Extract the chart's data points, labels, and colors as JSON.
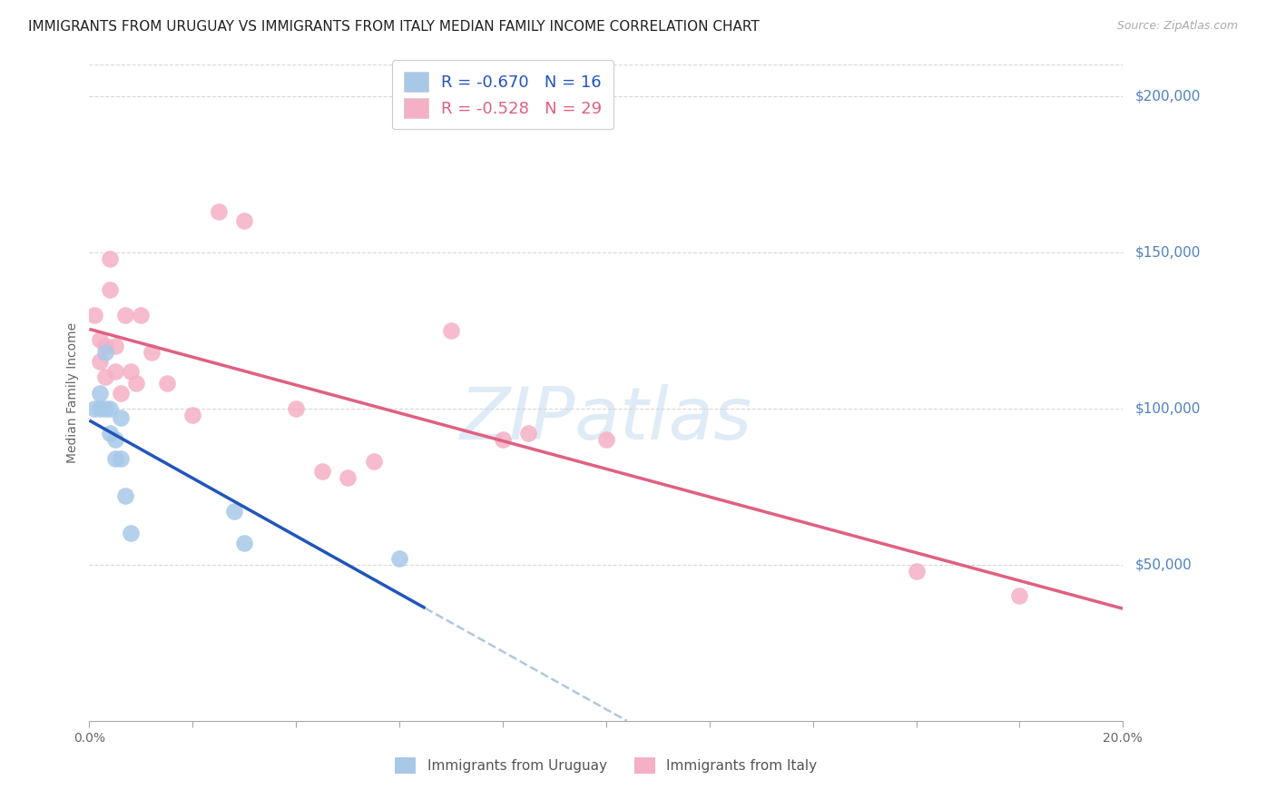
{
  "title": "IMMIGRANTS FROM URUGUAY VS IMMIGRANTS FROM ITALY MEDIAN FAMILY INCOME CORRELATION CHART",
  "source": "Source: ZipAtlas.com",
  "ylabel": "Median Family Income",
  "ytick_labels": [
    "$50,000",
    "$100,000",
    "$150,000",
    "$200,000"
  ],
  "ytick_values": [
    50000,
    100000,
    150000,
    200000
  ],
  "ytick_color": "#4f81bd",
  "watermark": "ZIPatlas",
  "legend_uruguay": "R = -0.670   N = 16",
  "legend_italy": "R = -0.528   N = 29",
  "legend_label_uruguay": "Immigrants from Uruguay",
  "legend_label_italy": "Immigrants from Italy",
  "uruguay_color": "#a8c8e8",
  "italy_color": "#f5b0c5",
  "uruguay_line_color": "#2255bb",
  "italy_line_color": "#e06080",
  "dashed_line_color": "#b0c8e0",
  "background_color": "#ffffff",
  "grid_color": "#d8d8d8",
  "uruguay_x": [
    0.001,
    0.002,
    0.002,
    0.003,
    0.003,
    0.004,
    0.004,
    0.005,
    0.005,
    0.006,
    0.006,
    0.007,
    0.008,
    0.028,
    0.03,
    0.06
  ],
  "uruguay_y": [
    100000,
    105000,
    100000,
    118000,
    100000,
    92000,
    100000,
    90000,
    84000,
    84000,
    97000,
    72000,
    60000,
    67000,
    57000,
    52000
  ],
  "italy_x": [
    0.001,
    0.002,
    0.002,
    0.003,
    0.003,
    0.004,
    0.004,
    0.005,
    0.005,
    0.006,
    0.007,
    0.008,
    0.009,
    0.01,
    0.012,
    0.015,
    0.02,
    0.025,
    0.03,
    0.04,
    0.045,
    0.05,
    0.055,
    0.07,
    0.08,
    0.085,
    0.1,
    0.16,
    0.18
  ],
  "italy_y": [
    130000,
    122000,
    115000,
    120000,
    110000,
    148000,
    138000,
    120000,
    112000,
    105000,
    130000,
    112000,
    108000,
    130000,
    118000,
    108000,
    98000,
    163000,
    160000,
    100000,
    80000,
    78000,
    83000,
    125000,
    90000,
    92000,
    90000,
    48000,
    40000
  ],
  "xmin": 0.0,
  "xmax": 0.2,
  "ymin": 0,
  "ymax": 210000,
  "title_fontsize": 11,
  "source_fontsize": 9,
  "axis_label_fontsize": 10,
  "tick_fontsize": 10,
  "marker_size": 180
}
